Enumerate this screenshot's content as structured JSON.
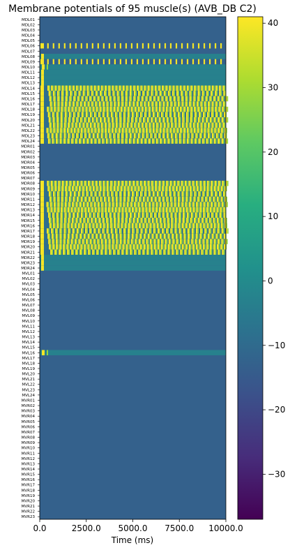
{
  "chart_data": {
    "type": "heatmap",
    "title": "Membrane potentials of 95 muscle(s) (AVB_DB C2)",
    "xlabel": "Time (ms)",
    "ylabel": "",
    "xlim": [
      0,
      10000
    ],
    "x_ticks": [
      "0.0",
      "2500.0",
      "5000.0",
      "7500.0",
      "10000.0"
    ],
    "x_tick_values": [
      0,
      2500,
      5000,
      7500,
      10000
    ],
    "colormap": "viridis",
    "colorbar": {
      "range": [
        -37,
        41
      ],
      "ticks": [
        "40",
        "30",
        "20",
        "10",
        "0",
        "−10",
        "−20",
        "−30"
      ],
      "tick_values": [
        40,
        30,
        20,
        10,
        0,
        -10,
        -20,
        -30
      ],
      "stops": [
        "#440154",
        "#472d7b",
        "#3b528b",
        "#2c728e",
        "#21918c",
        "#28ae80",
        "#5ec962",
        "#addc30",
        "#fde725"
      ]
    },
    "baseline_value": -13,
    "rows": [
      {
        "label": "MDL01",
        "pattern": "rest"
      },
      {
        "label": "MDL02",
        "pattern": "rest"
      },
      {
        "label": "MDL03",
        "pattern": "rest"
      },
      {
        "label": "MDL04",
        "pattern": "rest"
      },
      {
        "label": "MDL05",
        "pattern": "rest"
      },
      {
        "label": "MDL06",
        "pattern": "spiking"
      },
      {
        "label": "MDL07",
        "pattern": "rest"
      },
      {
        "label": "MDL08",
        "pattern": "depolarized"
      },
      {
        "label": "MDL09",
        "pattern": "spiking"
      },
      {
        "label": "MDL10",
        "pattern": "single-spike"
      },
      {
        "label": "MDL11",
        "pattern": "depolarized"
      },
      {
        "label": "MDL12",
        "pattern": "depolarized"
      },
      {
        "label": "MDL13",
        "pattern": "depolarized"
      },
      {
        "label": "MDL14",
        "pattern": "dense-spiking"
      },
      {
        "label": "MDL15",
        "pattern": "dense-spiking"
      },
      {
        "label": "MDL16",
        "pattern": "dense-spiking"
      },
      {
        "label": "MDL17",
        "pattern": "dense-spiking"
      },
      {
        "label": "MDL18",
        "pattern": "dense-spiking"
      },
      {
        "label": "MDL19",
        "pattern": "dense-spiking"
      },
      {
        "label": "MDL20",
        "pattern": "dense-spiking"
      },
      {
        "label": "MDL21",
        "pattern": "dense-spiking"
      },
      {
        "label": "MDL22",
        "pattern": "dense-spiking"
      },
      {
        "label": "MDL23",
        "pattern": "dense-spiking"
      },
      {
        "label": "MDL24",
        "pattern": "dense-spiking"
      },
      {
        "label": "MDR01",
        "pattern": "rest"
      },
      {
        "label": "MDR02",
        "pattern": "rest"
      },
      {
        "label": "MDR03",
        "pattern": "rest"
      },
      {
        "label": "MDR04",
        "pattern": "rest"
      },
      {
        "label": "MDR05",
        "pattern": "rest"
      },
      {
        "label": "MDR06",
        "pattern": "rest"
      },
      {
        "label": "MDR07",
        "pattern": "rest"
      },
      {
        "label": "MDR08",
        "pattern": "dense-spiking"
      },
      {
        "label": "MDR09",
        "pattern": "dense-spiking"
      },
      {
        "label": "MDR10",
        "pattern": "dense-spiking"
      },
      {
        "label": "MDR11",
        "pattern": "dense-spiking"
      },
      {
        "label": "MDR12",
        "pattern": "dense-spiking"
      },
      {
        "label": "MDR13",
        "pattern": "dense-spiking"
      },
      {
        "label": "MDR14",
        "pattern": "dense-spiking"
      },
      {
        "label": "MDR15",
        "pattern": "dense-spiking"
      },
      {
        "label": "MDR16",
        "pattern": "dense-spiking"
      },
      {
        "label": "MDR17",
        "pattern": "dense-spiking"
      },
      {
        "label": "MDR18",
        "pattern": "dense-spiking"
      },
      {
        "label": "MDR19",
        "pattern": "dense-spiking"
      },
      {
        "label": "MDR20",
        "pattern": "dense-spiking"
      },
      {
        "label": "MDR21",
        "pattern": "dense-spiking"
      },
      {
        "label": "MDR22",
        "pattern": "depolarized"
      },
      {
        "label": "MDR23",
        "pattern": "depolarized"
      },
      {
        "label": "MDR24",
        "pattern": "depolarized"
      },
      {
        "label": "MVL01",
        "pattern": "rest"
      },
      {
        "label": "MVL02",
        "pattern": "rest"
      },
      {
        "label": "MVL03",
        "pattern": "rest"
      },
      {
        "label": "MVL04",
        "pattern": "rest"
      },
      {
        "label": "MVL05",
        "pattern": "rest"
      },
      {
        "label": "MVL06",
        "pattern": "rest"
      },
      {
        "label": "MVL07",
        "pattern": "rest"
      },
      {
        "label": "MVL08",
        "pattern": "rest"
      },
      {
        "label": "MVL09",
        "pattern": "rest"
      },
      {
        "label": "MVL10",
        "pattern": "rest"
      },
      {
        "label": "MVL11",
        "pattern": "rest"
      },
      {
        "label": "MVL12",
        "pattern": "rest"
      },
      {
        "label": "MVL13",
        "pattern": "rest"
      },
      {
        "label": "MVL14",
        "pattern": "rest"
      },
      {
        "label": "MVL15",
        "pattern": "rest"
      },
      {
        "label": "MVL16",
        "pattern": "single-spike"
      },
      {
        "label": "MVL17",
        "pattern": "rest"
      },
      {
        "label": "MVL18",
        "pattern": "rest"
      },
      {
        "label": "MVL19",
        "pattern": "rest"
      },
      {
        "label": "MVL20",
        "pattern": "rest"
      },
      {
        "label": "MVL21",
        "pattern": "rest"
      },
      {
        "label": "MVL22",
        "pattern": "rest"
      },
      {
        "label": "MVL23",
        "pattern": "rest"
      },
      {
        "label": "MVL24",
        "pattern": "rest"
      },
      {
        "label": "MVR01",
        "pattern": "rest"
      },
      {
        "label": "MVR02",
        "pattern": "rest"
      },
      {
        "label": "MVR03",
        "pattern": "rest"
      },
      {
        "label": "MVR04",
        "pattern": "rest"
      },
      {
        "label": "MVR05",
        "pattern": "rest"
      },
      {
        "label": "MVR06",
        "pattern": "rest"
      },
      {
        "label": "MVR07",
        "pattern": "rest"
      },
      {
        "label": "MVR08",
        "pattern": "rest"
      },
      {
        "label": "MVR09",
        "pattern": "rest"
      },
      {
        "label": "MVR10",
        "pattern": "rest"
      },
      {
        "label": "MVR11",
        "pattern": "rest"
      },
      {
        "label": "MVR12",
        "pattern": "rest"
      },
      {
        "label": "MVR13",
        "pattern": "rest"
      },
      {
        "label": "MVR14",
        "pattern": "rest"
      },
      {
        "label": "MVR15",
        "pattern": "rest"
      },
      {
        "label": "MVR16",
        "pattern": "rest"
      },
      {
        "label": "MVR17",
        "pattern": "rest"
      },
      {
        "label": "MVR18",
        "pattern": "rest"
      },
      {
        "label": "MVR19",
        "pattern": "rest"
      },
      {
        "label": "MVR20",
        "pattern": "rest"
      },
      {
        "label": "MVR21",
        "pattern": "rest"
      },
      {
        "label": "MVR22",
        "pattern": "rest"
      },
      {
        "label": "MVR23",
        "pattern": "rest"
      }
    ]
  }
}
